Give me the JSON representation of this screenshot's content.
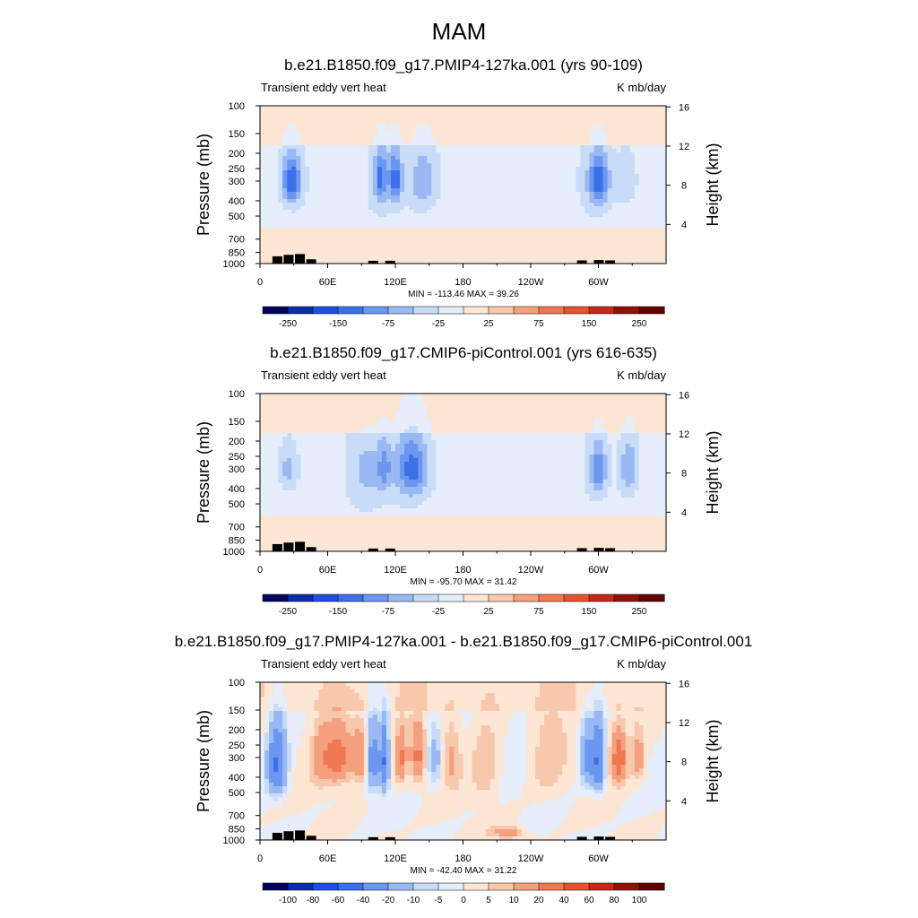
{
  "main_title": "MAM",
  "chart_data": [
    {
      "type": "heatmap",
      "title": "b.e21.B1850.f09_g17.PMIP4-127ka.001 (yrs 90-109)",
      "left_label": "Transient eddy vert heat",
      "right_label": "K mb/day",
      "ylabel": "Pressure (mb)",
      "y2label": "Height (km)",
      "xticks": [
        "0",
        "60E",
        "120E",
        "180",
        "120W",
        "60W"
      ],
      "yticks": [
        "100",
        "150",
        "200",
        "250",
        "300",
        "400",
        "500",
        "700",
        "850",
        "1000"
      ],
      "y2ticks": [
        "4",
        "8",
        "12",
        "16"
      ],
      "stats": "MIN = -113.46  MAX =  39.26",
      "colorbar_labels": [
        "-250",
        "-150",
        "-75",
        "-25",
        "25",
        "75",
        "150",
        "250"
      ],
      "colorbar_levels": [
        -250,
        -200,
        -150,
        -100,
        -75,
        -50,
        -25,
        0,
        25,
        50,
        75,
        100,
        150,
        200,
        250
      ],
      "blobs": [
        {
          "lon": 28,
          "p": 300,
          "amp": -110,
          "wlon": 9,
          "wp": 110
        },
        {
          "lon": 107,
          "p": 290,
          "amp": -90,
          "wlon": 6,
          "wp": 110
        },
        {
          "lon": 120,
          "p": 290,
          "amp": -95,
          "wlon": 6,
          "wp": 110
        },
        {
          "lon": 145,
          "p": 300,
          "amp": -55,
          "wlon": 13,
          "wp": 130
        },
        {
          "lon": 300,
          "p": 300,
          "amp": -110,
          "wlon": 9,
          "wp": 110
        },
        {
          "lon": 325,
          "p": 300,
          "amp": -25,
          "wlon": 10,
          "wp": 120
        }
      ]
    },
    {
      "type": "heatmap",
      "title": "b.e21.B1850.f09_g17.CMIP6-piControl.001 (yrs 616-635)",
      "left_label": "Transient eddy vert heat",
      "right_label": "K mb/day",
      "ylabel": "Pressure (mb)",
      "y2label": "Height (km)",
      "xticks": [
        "0",
        "60E",
        "120E",
        "180",
        "120W",
        "60W"
      ],
      "yticks": [
        "100",
        "150",
        "200",
        "250",
        "300",
        "400",
        "500",
        "700",
        "850",
        "1000"
      ],
      "y2ticks": [
        "4",
        "8",
        "12",
        "16"
      ],
      "stats": "MIN = -95.70  MAX =  31.42",
      "colorbar_labels": [
        "-250",
        "-150",
        "-75",
        "-25",
        "25",
        "75",
        "150",
        "250"
      ],
      "colorbar_levels": [
        -250,
        -200,
        -150,
        -100,
        -75,
        -50,
        -25,
        0,
        25,
        50,
        75,
        100,
        150,
        200,
        250
      ],
      "blobs": [
        {
          "lon": 25,
          "p": 300,
          "amp": -45,
          "wlon": 8,
          "wp": 100
        },
        {
          "lon": 95,
          "p": 310,
          "amp": -40,
          "wlon": 12,
          "wp": 130
        },
        {
          "lon": 110,
          "p": 300,
          "amp": -60,
          "wlon": 6,
          "wp": 110
        },
        {
          "lon": 135,
          "p": 300,
          "amp": -95,
          "wlon": 15,
          "wp": 140
        },
        {
          "lon": 300,
          "p": 300,
          "amp": -80,
          "wlon": 7,
          "wp": 110
        },
        {
          "lon": 327,
          "p": 300,
          "amp": -60,
          "wlon": 8,
          "wp": 120
        }
      ]
    },
    {
      "type": "heatmap",
      "title": "b.e21.B1850.f09_g17.PMIP4-127ka.001 - b.e21.B1850.f09_g17.CMIP6-piControl.001",
      "left_label": "Transient eddy vert heat",
      "right_label": "K mb/day",
      "ylabel": "Pressure (mb)",
      "y2label": "Height (km)",
      "xticks": [
        "0",
        "60E",
        "120E",
        "180",
        "120W",
        "60W"
      ],
      "yticks": [
        "100",
        "150",
        "200",
        "250",
        "300",
        "400",
        "500",
        "700",
        "850",
        "1000"
      ],
      "y2ticks": [
        "4",
        "8",
        "12",
        "16"
      ],
      "stats": "MIN = -42.40  MAX =  31.22",
      "colorbar_labels": [
        "-100",
        "-80",
        "-60",
        "-40",
        "-20",
        "-10",
        "-5",
        "0",
        "5",
        "10",
        "20",
        "40",
        "60",
        "80",
        "100"
      ],
      "colorbar_levels": [
        -100,
        -80,
        -60,
        -40,
        -20,
        -10,
        -5,
        0,
        5,
        10,
        20,
        40,
        60,
        80,
        100
      ],
      "blobs": [
        {
          "lon": 15,
          "p": 330,
          "amp": -42,
          "wlon": 8,
          "wp": 160
        },
        {
          "lon": 55,
          "p": 300,
          "amp": 15,
          "wlon": 10,
          "wp": 150
        },
        {
          "lon": 70,
          "p": 300,
          "amp": 25,
          "wlon": 10,
          "wp": 130
        },
        {
          "lon": 88,
          "p": 300,
          "amp": 22,
          "wlon": 8,
          "wp": 120
        },
        {
          "lon": 100,
          "p": 320,
          "amp": -30,
          "wlon": 5,
          "wp": 150
        },
        {
          "lon": 110,
          "p": 320,
          "amp": -40,
          "wlon": 4,
          "wp": 150
        },
        {
          "lon": 125,
          "p": 300,
          "amp": 20,
          "wlon": 5,
          "wp": 120
        },
        {
          "lon": 140,
          "p": 300,
          "amp": 22,
          "wlon": 6,
          "wp": 120
        },
        {
          "lon": 155,
          "p": 300,
          "amp": -15,
          "wlon": 6,
          "wp": 130
        },
        {
          "lon": 170,
          "p": 300,
          "amp": 12,
          "wlon": 8,
          "wp": 150
        },
        {
          "lon": 200,
          "p": 350,
          "amp": 10,
          "wlon": 12,
          "wp": 200
        },
        {
          "lon": 220,
          "p": 900,
          "amp": 15,
          "wlon": 15,
          "wp": 80
        },
        {
          "lon": 255,
          "p": 300,
          "amp": 8,
          "wlon": 15,
          "wp": 200
        },
        {
          "lon": 290,
          "p": 300,
          "amp": -25,
          "wlon": 6,
          "wp": 140
        },
        {
          "lon": 300,
          "p": 320,
          "amp": -42,
          "wlon": 5,
          "wp": 150
        },
        {
          "lon": 318,
          "p": 300,
          "amp": 30,
          "wlon": 7,
          "wp": 120
        },
        {
          "lon": 335,
          "p": 300,
          "amp": 15,
          "wlon": 6,
          "wp": 120
        }
      ]
    }
  ]
}
